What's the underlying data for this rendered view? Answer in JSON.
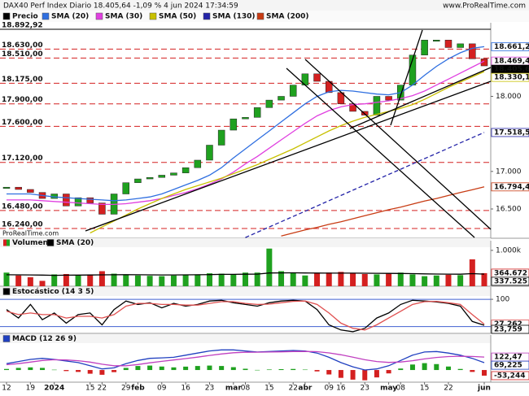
{
  "header": {
    "title": "DAX40 Perf Index Diario 18.405,64 -1,09 % 4 jun 2024 17:34:59",
    "site": "www.ProRealTime.com",
    "watermark": "ProRealTime.com"
  },
  "chart_data": [
    {
      "type": "candlestick",
      "name": "Precio",
      "color_up": "#1fa11f",
      "color_down": "#d42020",
      "close": [
        16790,
        16760,
        16720,
        16640,
        16700,
        16540,
        16650,
        16580,
        16430,
        16700,
        16850,
        16900,
        16920,
        16950,
        16980,
        17050,
        17150,
        17350,
        17550,
        17700,
        17720,
        17850,
        17950,
        18000,
        18150,
        18300,
        18200,
        18050,
        17900,
        17800,
        17750,
        18000,
        17950,
        18150,
        18550,
        18750,
        18750,
        18650,
        18700,
        18500,
        18405.64
      ],
      "last_label": "18.405,64",
      "series": [
        {
          "name": "SMA (20)",
          "color": "#2f6fe0",
          "last_label": "18.661,20",
          "values": [
            16700,
            16700,
            16700,
            16680,
            16660,
            16650,
            16640,
            16630,
            16620,
            16610,
            16620,
            16640,
            16660,
            16700,
            16760,
            16820,
            16880,
            16950,
            17050,
            17180,
            17300,
            17420,
            17540,
            17660,
            17780,
            17900,
            18000,
            18060,
            18080,
            18070,
            18050,
            18030,
            18020,
            18050,
            18150,
            18280,
            18400,
            18500,
            18580,
            18640,
            18661.2
          ]
        },
        {
          "name": "SMA (30)",
          "color": "#e040e0",
          "last_label": "18.469,42",
          "values": [
            16620,
            16620,
            16620,
            16610,
            16600,
            16590,
            16580,
            16570,
            16560,
            16560,
            16570,
            16590,
            16610,
            16640,
            16680,
            16720,
            16770,
            16830,
            16900,
            16990,
            17100,
            17200,
            17310,
            17420,
            17530,
            17640,
            17740,
            17810,
            17860,
            17890,
            17900,
            17920,
            17940,
            17970,
            18010,
            18070,
            18150,
            18230,
            18310,
            18390,
            18469.42
          ]
        },
        {
          "name": "SMA (50)",
          "color": "#c8c000",
          "last_label": "18.330,13",
          "values": [
            null,
            null,
            null,
            null,
            null,
            null,
            null,
            16180,
            16260,
            16340,
            16420,
            16500,
            16570,
            16640,
            16700,
            16760,
            16810,
            16860,
            16910,
            16970,
            17030,
            17090,
            17160,
            17230,
            17300,
            17380,
            17460,
            17540,
            17610,
            17670,
            17720,
            17760,
            17800,
            17840,
            17890,
            17960,
            18040,
            18120,
            18190,
            18260,
            18330.13
          ]
        },
        {
          "name": "SMA (130)",
          "color": "#2424a8",
          "dashed": true,
          "last_label": "17.518,53",
          "values": [
            null,
            null,
            null,
            null,
            null,
            null,
            null,
            null,
            null,
            null,
            null,
            null,
            null,
            null,
            null,
            null,
            null,
            null,
            null,
            null,
            16120,
            16190,
            16260,
            16330,
            16400,
            16470,
            16540,
            16610,
            16680,
            16750,
            16820,
            16890,
            16960,
            17030,
            17100,
            17170,
            17240,
            17310,
            17380,
            17450,
            17518.53
          ]
        },
        {
          "name": "SMA (200)",
          "color": "#c83c14",
          "last_label": "16.794,42",
          "values": [
            null,
            null,
            null,
            null,
            null,
            null,
            null,
            null,
            null,
            null,
            null,
            null,
            null,
            null,
            null,
            null,
            null,
            null,
            null,
            null,
            null,
            null,
            null,
            16140,
            16180,
            16220,
            16255,
            16295,
            16330,
            16370,
            16410,
            16450,
            16490,
            16525,
            16565,
            16605,
            16640,
            16680,
            16720,
            16755,
            16794.42
          ]
        }
      ],
      "levels": [
        {
          "value": 18892.92,
          "label": "18.892,92",
          "color": "#000000"
        },
        {
          "value": 18630,
          "label": "18.630,00",
          "color": "#d42020"
        },
        {
          "value": 18510,
          "label": "18.510,00",
          "color": "#d42020"
        },
        {
          "value": 18175,
          "label": "18.175,00",
          "color": "#d42020"
        },
        {
          "value": 17900,
          "label": "17.900,00",
          "color": "#d42020"
        },
        {
          "value": 17600,
          "label": "17.600,00",
          "color": "#d42020"
        },
        {
          "value": 17120,
          "label": "17.120,00",
          "color": "#d42020"
        },
        {
          "value": 16480,
          "label": "16.480,00",
          "color": "#d42020"
        },
        {
          "value": 16240,
          "label": "16.240,00",
          "color": "#d42020"
        }
      ],
      "ylim": [
        16110,
        18980
      ],
      "yticks": [
        {
          "value": 18000,
          "label": "18.000"
        },
        {
          "value": 17000,
          "label": "17.000"
        },
        {
          "value": 16500,
          "label": "16.500"
        }
      ]
    },
    {
      "type": "bar",
      "name": "Volumen",
      "color_up": "#1fa11f",
      "color_down": "#d42020",
      "values": [
        380000,
        300000,
        250000,
        150000,
        330000,
        340000,
        310000,
        330000,
        420000,
        350000,
        330000,
        300000,
        290000,
        280000,
        300000,
        320000,
        330000,
        360000,
        350000,
        340000,
        380000,
        380000,
        1050000,
        420000,
        380000,
        300000,
        360000,
        380000,
        400000,
        370000,
        340000,
        330000,
        360000,
        380000,
        330000,
        280000,
        300000,
        320000,
        310000,
        750000,
        364672
      ],
      "last_label": "364.672",
      "series": [
        {
          "name": "SMA (20)",
          "color": "#000000",
          "last_label": "337.525",
          "values": [
            320000,
            318000,
            315000,
            310000,
            305000,
            308000,
            310000,
            312000,
            318000,
            320000,
            322000,
            320000,
            318000,
            315000,
            315000,
            318000,
            320000,
            325000,
            330000,
            332000,
            335000,
            338000,
            370000,
            372000,
            374000,
            370000,
            368000,
            366000,
            365000,
            364000,
            362000,
            360000,
            358000,
            356000,
            352000,
            345000,
            340000,
            338000,
            336000,
            352000,
            337525
          ]
        }
      ],
      "ylim": [
        0,
        1270000
      ],
      "yticks": [
        {
          "value": 1000000,
          "label": "1.000k"
        }
      ]
    },
    {
      "type": "line",
      "name": "Estocástico (14 3 5)",
      "series": [
        {
          "color": "#000000",
          "last_label": "23,759",
          "values": [
            70,
            45,
            85,
            40,
            60,
            30,
            55,
            60,
            25,
            70,
            95,
            85,
            90,
            75,
            88,
            80,
            85,
            95,
            97,
            90,
            85,
            80,
            90,
            95,
            97,
            95,
            70,
            25,
            10,
            5,
            15,
            45,
            60,
            85,
            97,
            95,
            92,
            88,
            80,
            35,
            23.759
          ]
        },
        {
          "color": "#e05050",
          "last_label": "27,262",
          "values": [
            65,
            55,
            60,
            55,
            55,
            45,
            50,
            50,
            45,
            55,
            80,
            88,
            88,
            85,
            85,
            83,
            83,
            88,
            93,
            93,
            88,
            85,
            86,
            90,
            94,
            95,
            85,
            60,
            30,
            15,
            10,
            25,
            45,
            65,
            85,
            93,
            94,
            90,
            85,
            55,
            27.262
          ]
        }
      ],
      "levels": [
        100,
        20
      ],
      "ylim": [
        0,
        136
      ],
      "yticks": [
        100
      ]
    },
    {
      "type": "macd",
      "name": "MACD (12 26 9)",
      "categories": [
        "12",
        null,
        "19",
        null,
        "2024",
        null,
        null,
        "15",
        "22",
        null,
        "29",
        "feb",
        null,
        "09",
        null,
        "16",
        null,
        "23",
        null,
        "mar",
        "08",
        null,
        "15",
        null,
        "22",
        "abr",
        null,
        "09",
        "16",
        null,
        "23",
        null,
        "may",
        "08",
        null,
        "15",
        null,
        "22",
        null,
        null,
        "jun"
      ],
      "series": [
        {
          "color": "#2040c0",
          "last_label": "69,225",
          "values": [
            60,
            80,
            100,
            110,
            100,
            85,
            70,
            40,
            10,
            20,
            60,
            90,
            110,
            115,
            120,
            140,
            160,
            180,
            190,
            190,
            180,
            170,
            175,
            180,
            185,
            180,
            160,
            120,
            70,
            30,
            0,
            10,
            40,
            90,
            140,
            170,
            175,
            160,
            140,
            110,
            69.225
          ]
        },
        {
          "color": "#c040c0",
          "last_label": "122,47",
          "values": [
            50,
            60,
            75,
            90,
            97,
            95,
            88,
            75,
            55,
            40,
            40,
            52,
            68,
            82,
            95,
            108,
            122,
            138,
            152,
            163,
            168,
            169,
            170,
            172,
            175,
            176,
            173,
            162,
            144,
            121,
            97,
            80,
            72,
            76,
            88,
            105,
            119,
            127,
            130,
            128,
            122.47
          ]
        }
      ],
      "histogram": {
        "color_up": "#1fa11f",
        "color_down": "#d42020",
        "last_label": "-53,244",
        "values": [
          10,
          20,
          25,
          20,
          3,
          -10,
          -18,
          -35,
          -45,
          -20,
          20,
          38,
          42,
          33,
          25,
          32,
          38,
          42,
          38,
          27,
          12,
          1,
          5,
          8,
          10,
          4,
          -13,
          -42,
          -74,
          -91,
          -97,
          -70,
          -32,
          14,
          52,
          65,
          56,
          33,
          10,
          -18,
          -53.244
        ]
      },
      "ylim": [
        -115,
        331
      ]
    }
  ]
}
